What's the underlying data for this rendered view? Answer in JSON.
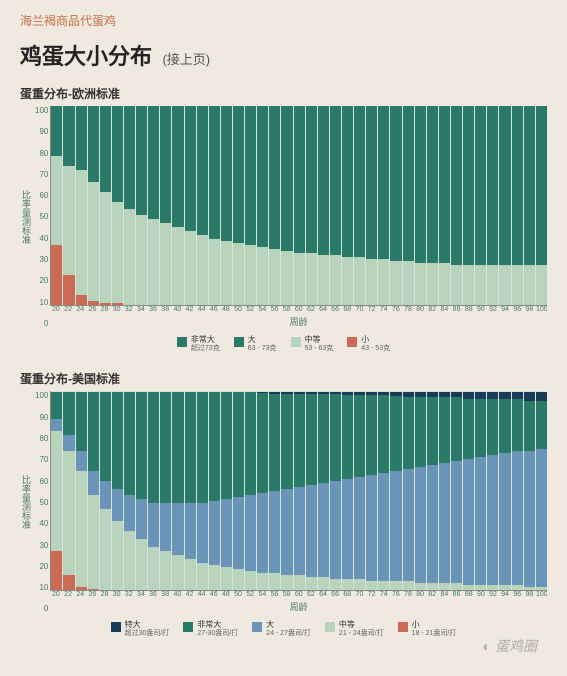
{
  "breadcrumb": "海兰褐商品代蛋鸡",
  "title": "鸡蛋大小分布",
  "title_suffix": "(接上页)",
  "x_label": "周龄",
  "y_label": "比率量测标准",
  "y_ticks": [
    0,
    10,
    20,
    30,
    40,
    50,
    60,
    70,
    80,
    90,
    100
  ],
  "x_ticks": [
    20,
    22,
    24,
    26,
    28,
    30,
    32,
    34,
    36,
    38,
    40,
    42,
    44,
    46,
    48,
    50,
    52,
    54,
    56,
    58,
    60,
    62,
    64,
    66,
    68,
    70,
    72,
    74,
    76,
    78,
    80,
    82,
    84,
    86,
    88,
    90,
    92,
    94,
    96,
    98,
    100
  ],
  "colors": {
    "xl_navy": "#1a3a5a",
    "vl_teal": "#2a7a6a",
    "l_green": "#b8d4bc",
    "m_lgreen": "#cde0cc",
    "s_red": "#cc6b55",
    "large_blue": "#6b95b8",
    "background": "#efe9df",
    "chart_bg": "#d8e4d8"
  },
  "chart_eu": {
    "subtitle": "蛋重分布-欧洲标准",
    "legend": [
      {
        "color": "#2a7a6a",
        "label": "非常大",
        "sub": "超过73克"
      },
      {
        "color": "#2a7a6a",
        "label": "大",
        "sub": "63 - 73克"
      },
      {
        "color": "#b8d4bc",
        "label": "中等",
        "sub": "53 - 63克"
      },
      {
        "color": "#cc6b55",
        "label": "小",
        "sub": "43 - 53克"
      }
    ],
    "series_keys": [
      "s",
      "m",
      "l",
      "vl"
    ],
    "series_colors": {
      "s": "#cc6b55",
      "m": "#b8d4bc",
      "l": "#2a7a6a",
      "vl": "#2a7a6a"
    },
    "data": [
      {
        "s": 30,
        "m": 45,
        "l": 23,
        "vl": 2
      },
      {
        "s": 15,
        "m": 55,
        "l": 27,
        "vl": 3
      },
      {
        "s": 5,
        "m": 63,
        "l": 28,
        "vl": 4
      },
      {
        "s": 2,
        "m": 60,
        "l": 33,
        "vl": 5
      },
      {
        "s": 1,
        "m": 56,
        "l": 37,
        "vl": 6
      },
      {
        "s": 1,
        "m": 51,
        "l": 40,
        "vl": 8
      },
      {
        "s": 0,
        "m": 48,
        "l": 42,
        "vl": 10
      },
      {
        "s": 0,
        "m": 45,
        "l": 43,
        "vl": 12
      },
      {
        "s": 0,
        "m": 43,
        "l": 43,
        "vl": 14
      },
      {
        "s": 0,
        "m": 41,
        "l": 43,
        "vl": 16
      },
      {
        "s": 0,
        "m": 39,
        "l": 43,
        "vl": 18
      },
      {
        "s": 0,
        "m": 37,
        "l": 43,
        "vl": 20
      },
      {
        "s": 0,
        "m": 35,
        "l": 43,
        "vl": 22
      },
      {
        "s": 0,
        "m": 33,
        "l": 44,
        "vl": 23
      },
      {
        "s": 0,
        "m": 32,
        "l": 44,
        "vl": 24
      },
      {
        "s": 0,
        "m": 31,
        "l": 44,
        "vl": 25
      },
      {
        "s": 0,
        "m": 30,
        "l": 44,
        "vl": 26
      },
      {
        "s": 0,
        "m": 29,
        "l": 44,
        "vl": 27
      },
      {
        "s": 0,
        "m": 28,
        "l": 44,
        "vl": 28
      },
      {
        "s": 0,
        "m": 27,
        "l": 44,
        "vl": 29
      },
      {
        "s": 0,
        "m": 26,
        "l": 44,
        "vl": 30
      },
      {
        "s": 0,
        "m": 26,
        "l": 43,
        "vl": 31
      },
      {
        "s": 0,
        "m": 25,
        "l": 43,
        "vl": 32
      },
      {
        "s": 0,
        "m": 25,
        "l": 42,
        "vl": 33
      },
      {
        "s": 0,
        "m": 24,
        "l": 43,
        "vl": 33
      },
      {
        "s": 0,
        "m": 24,
        "l": 42,
        "vl": 34
      },
      {
        "s": 0,
        "m": 23,
        "l": 43,
        "vl": 34
      },
      {
        "s": 0,
        "m": 23,
        "l": 42,
        "vl": 35
      },
      {
        "s": 0,
        "m": 22,
        "l": 43,
        "vl": 35
      },
      {
        "s": 0,
        "m": 22,
        "l": 42,
        "vl": 36
      },
      {
        "s": 0,
        "m": 21,
        "l": 43,
        "vl": 36
      },
      {
        "s": 0,
        "m": 21,
        "l": 42,
        "vl": 37
      },
      {
        "s": 0,
        "m": 21,
        "l": 41,
        "vl": 38
      },
      {
        "s": 0,
        "m": 20,
        "l": 42,
        "vl": 38
      },
      {
        "s": 0,
        "m": 20,
        "l": 41,
        "vl": 39
      },
      {
        "s": 0,
        "m": 20,
        "l": 41,
        "vl": 39
      },
      {
        "s": 0,
        "m": 20,
        "l": 40,
        "vl": 40
      },
      {
        "s": 0,
        "m": 20,
        "l": 40,
        "vl": 40
      },
      {
        "s": 0,
        "m": 20,
        "l": 40,
        "vl": 40
      },
      {
        "s": 0,
        "m": 20,
        "l": 40,
        "vl": 40
      },
      {
        "s": 0,
        "m": 20,
        "l": 40,
        "vl": 40
      }
    ]
  },
  "chart_us": {
    "subtitle": "蛋重分布-美国标准",
    "legend": [
      {
        "color": "#1a3a5a",
        "label": "特大",
        "sub": "超过30盎司/打"
      },
      {
        "color": "#2a7a6a",
        "label": "非常大",
        "sub": "27-30盎司/打"
      },
      {
        "color": "#6b95b8",
        "label": "大",
        "sub": "24 - 27盎司/打"
      },
      {
        "color": "#b8d4bc",
        "label": "中等",
        "sub": "21 - 24盎司/打"
      },
      {
        "color": "#cc6b55",
        "label": "小",
        "sub": "18 - 21盎司/打"
      }
    ],
    "series_keys": [
      "s",
      "m",
      "l",
      "vl",
      "xl"
    ],
    "series_colors": {
      "s": "#cc6b55",
      "m": "#b8d4bc",
      "l": "#6b95b8",
      "vl": "#2a7a6a",
      "xl": "#1a3a5a"
    },
    "data": [
      {
        "s": 20,
        "m": 60,
        "l": 6,
        "vl": 14,
        "xl": 0
      },
      {
        "s": 8,
        "m": 62,
        "l": 8,
        "vl": 22,
        "xl": 0
      },
      {
        "s": 2,
        "m": 58,
        "l": 10,
        "vl": 30,
        "xl": 0
      },
      {
        "s": 1,
        "m": 47,
        "l": 12,
        "vl": 40,
        "xl": 0
      },
      {
        "s": 0,
        "m": 41,
        "l": 14,
        "vl": 45,
        "xl": 0
      },
      {
        "s": 0,
        "m": 35,
        "l": 16,
        "vl": 49,
        "xl": 0
      },
      {
        "s": 0,
        "m": 30,
        "l": 18,
        "vl": 52,
        "xl": 0
      },
      {
        "s": 0,
        "m": 26,
        "l": 20,
        "vl": 54,
        "xl": 0
      },
      {
        "s": 0,
        "m": 22,
        "l": 22,
        "vl": 56,
        "xl": 0
      },
      {
        "s": 0,
        "m": 20,
        "l": 24,
        "vl": 56,
        "xl": 0
      },
      {
        "s": 0,
        "m": 18,
        "l": 26,
        "vl": 56,
        "xl": 0
      },
      {
        "s": 0,
        "m": 16,
        "l": 28,
        "vl": 56,
        "xl": 0
      },
      {
        "s": 0,
        "m": 14,
        "l": 30,
        "vl": 56,
        "xl": 0
      },
      {
        "s": 0,
        "m": 13,
        "l": 32,
        "vl": 55,
        "xl": 0
      },
      {
        "s": 0,
        "m": 12,
        "l": 34,
        "vl": 54,
        "xl": 0
      },
      {
        "s": 0,
        "m": 11,
        "l": 36,
        "vl": 53,
        "xl": 0
      },
      {
        "s": 0,
        "m": 10,
        "l": 38,
        "vl": 52,
        "xl": 0
      },
      {
        "s": 0,
        "m": 9,
        "l": 40,
        "vl": 50,
        "xl": 1
      },
      {
        "s": 0,
        "m": 9,
        "l": 41,
        "vl": 49,
        "xl": 1
      },
      {
        "s": 0,
        "m": 8,
        "l": 43,
        "vl": 48,
        "xl": 1
      },
      {
        "s": 0,
        "m": 8,
        "l": 44,
        "vl": 47,
        "xl": 1
      },
      {
        "s": 0,
        "m": 7,
        "l": 46,
        "vl": 46,
        "xl": 1
      },
      {
        "s": 0,
        "m": 7,
        "l": 47,
        "vl": 45,
        "xl": 1
      },
      {
        "s": 0,
        "m": 6,
        "l": 49,
        "vl": 44,
        "xl": 1
      },
      {
        "s": 0,
        "m": 6,
        "l": 50,
        "vl": 42,
        "xl": 2
      },
      {
        "s": 0,
        "m": 6,
        "l": 51,
        "vl": 41,
        "xl": 2
      },
      {
        "s": 0,
        "m": 5,
        "l": 53,
        "vl": 40,
        "xl": 2
      },
      {
        "s": 0,
        "m": 5,
        "l": 54,
        "vl": 39,
        "xl": 2
      },
      {
        "s": 0,
        "m": 5,
        "l": 55,
        "vl": 38,
        "xl": 2
      },
      {
        "s": 0,
        "m": 5,
        "l": 56,
        "vl": 36,
        "xl": 3
      },
      {
        "s": 0,
        "m": 4,
        "l": 58,
        "vl": 35,
        "xl": 3
      },
      {
        "s": 0,
        "m": 4,
        "l": 59,
        "vl": 34,
        "xl": 3
      },
      {
        "s": 0,
        "m": 4,
        "l": 60,
        "vl": 33,
        "xl": 3
      },
      {
        "s": 0,
        "m": 4,
        "l": 61,
        "vl": 32,
        "xl": 3
      },
      {
        "s": 0,
        "m": 3,
        "l": 63,
        "vl": 30,
        "xl": 4
      },
      {
        "s": 0,
        "m": 3,
        "l": 64,
        "vl": 29,
        "xl": 4
      },
      {
        "s": 0,
        "m": 3,
        "l": 65,
        "vl": 28,
        "xl": 4
      },
      {
        "s": 0,
        "m": 3,
        "l": 66,
        "vl": 27,
        "xl": 4
      },
      {
        "s": 0,
        "m": 3,
        "l": 67,
        "vl": 26,
        "xl": 4
      },
      {
        "s": 0,
        "m": 2,
        "l": 68,
        "vl": 25,
        "xl": 5
      },
      {
        "s": 0,
        "m": 2,
        "l": 69,
        "vl": 24,
        "xl": 5
      }
    ]
  },
  "watermark": "蛋鸡圈"
}
